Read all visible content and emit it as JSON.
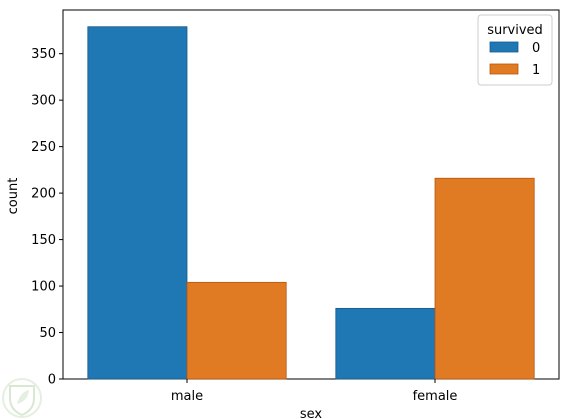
{
  "chart_data": {
    "type": "bar",
    "title": "",
    "xlabel": "sex",
    "ylabel": "count",
    "categories": [
      "male",
      "female"
    ],
    "series": [
      {
        "name": "0",
        "values": [
          379,
          76
        ],
        "color": "#1f77b4",
        "edge": "#1a5a8a"
      },
      {
        "name": "1",
        "values": [
          104,
          216
        ],
        "color": "#e07b24",
        "edge": "#b5570d"
      }
    ],
    "ylim": [
      0,
      397
    ],
    "yticks": [
      0,
      50,
      100,
      150,
      200,
      250,
      300,
      350
    ],
    "grid": false,
    "legend": {
      "title": "survived",
      "placement": "top-right"
    }
  },
  "watermark": {
    "icon": "shield-leaf-icon"
  }
}
